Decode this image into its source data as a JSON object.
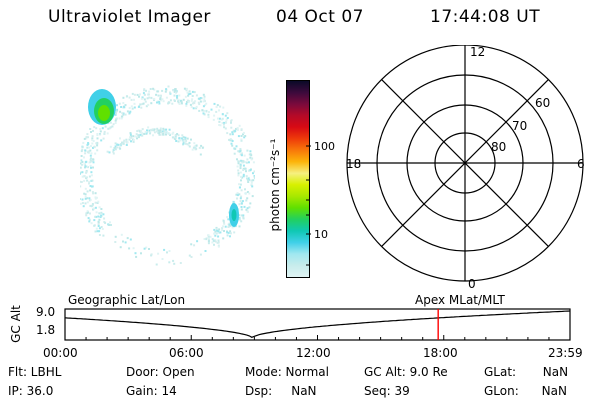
{
  "header": {
    "title": "Ultraviolet Imager",
    "date": "04 Oct 07",
    "time": "17:44:08 UT"
  },
  "colorbar": {
    "unit_label": "photon cm⁻²s⁻¹",
    "ticks": [
      "100",
      "10"
    ],
    "colors": [
      "#0a0a28",
      "#3c0a3c",
      "#7a0a3c",
      "#b40a28",
      "#d80a14",
      "#ee3a0a",
      "#f8780a",
      "#fcb40a",
      "#f6f080",
      "#d8f000",
      "#a8e800",
      "#60e000",
      "#22d060",
      "#10c8b4",
      "#40d0e8",
      "#a0e8f0",
      "#c8ecec",
      "#e0f4f4"
    ]
  },
  "polar": {
    "labels": {
      "top": "12",
      "left": "18",
      "right": "6",
      "bottom": "0"
    },
    "ring_labels": [
      "60",
      "70",
      "80"
    ]
  },
  "timeline": {
    "axis_label": "GC Alt",
    "y_ticks": [
      "9.0",
      "1.8"
    ],
    "left_title": "Geographic Lat/Lon",
    "right_title": "Apex MLat/MLT",
    "x_ticks": [
      "00:00",
      "06:00",
      "12:00",
      "18:00",
      "23:59"
    ],
    "marker_color": "#ff0000"
  },
  "info": {
    "flt": "Flt: LBHL",
    "ip": "IP: 36.0",
    "door": "Door: Open",
    "gain": "Gain: 14",
    "mode": "Mode: Normal",
    "dsp": "Dsp:     NaN",
    "gc_alt": "GC Alt: 9.0 Re",
    "seq": "Seq: 39",
    "glat": "GLat:       NaN",
    "glon": "GLon:      NaN"
  }
}
